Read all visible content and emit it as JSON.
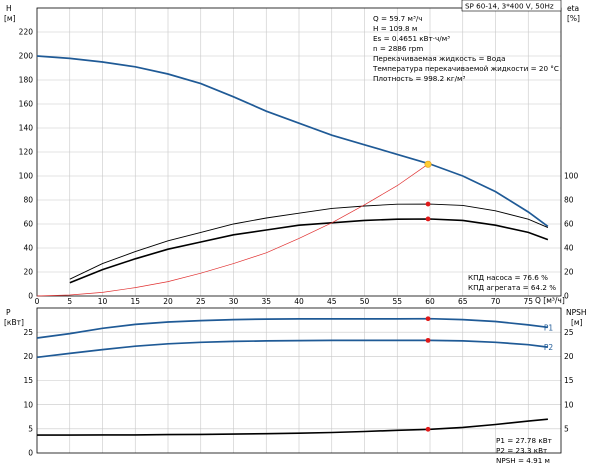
{
  "title_box": "SP 60-14, 3*400 V, 50Hz",
  "info_lines": [
    "Q = 59.7 м³/ч",
    "H = 109.8 м",
    "Es = 0.4651 кВт·ч/м³",
    "n = 2886 rpm",
    "Перекачиваемая жидкость = Вода",
    "Температура перекачиваемой жидкости = 20 °C",
    "Плотность = 998.2 кг/м³"
  ],
  "eff_lines": [
    "КПД насоса = 76.6 %",
    "КПД агрегата = 64.2 %"
  ],
  "power_lines": [
    "P1 = 27.78 кВт",
    "P2 = 23.3 кВт",
    "NPSH = 4.91 м"
  ],
  "chart_data": [
    {
      "type": "line",
      "name": "head-efficiency",
      "xlabel": "Q [м³/ч]",
      "ylabel_left": "H",
      "ylabel_left_unit": "[м]",
      "ylabel_right": "eta",
      "ylabel_right_unit": "[%]",
      "x_ticks": [
        0,
        5,
        10,
        15,
        20,
        25,
        30,
        35,
        40,
        45,
        50,
        55,
        60,
        65,
        70,
        75
      ],
      "y_ticks_left": [
        0,
        20,
        40,
        60,
        80,
        100,
        120,
        140,
        160,
        180,
        200,
        220
      ],
      "y_ticks_right": [
        0,
        20,
        40,
        60,
        80,
        100
      ],
      "xlim": [
        0,
        80
      ],
      "ylim": [
        0,
        240
      ],
      "grid": true,
      "duty_point": {
        "x": 59.7,
        "y": 109.8
      },
      "series": [
        {
          "name": "H",
          "color": "#1f5a96",
          "x": [
            0,
            5,
            10,
            15,
            20,
            25,
            30,
            35,
            40,
            45,
            50,
            55,
            60,
            65,
            70,
            75,
            78
          ],
          "y": [
            200,
            198,
            195,
            191,
            185,
            177,
            166,
            154,
            144,
            134,
            126,
            118,
            110,
            100,
            87,
            70,
            58
          ]
        },
        {
          "name": "КПД насоса",
          "color": "#000000",
          "x": [
            5,
            10,
            15,
            20,
            25,
            30,
            35,
            40,
            45,
            50,
            55,
            60,
            65,
            70,
            75,
            78
          ],
          "y": [
            14,
            27,
            37,
            46,
            53,
            60,
            65,
            69,
            73,
            75,
            76.5,
            76.6,
            75.5,
            71,
            64,
            57
          ]
        },
        {
          "name": "КПД агрегата",
          "color": "#000000",
          "x": [
            5,
            10,
            15,
            20,
            25,
            30,
            35,
            40,
            45,
            50,
            55,
            60,
            65,
            70,
            75,
            78
          ],
          "y": [
            11,
            22,
            31,
            39,
            45,
            51,
            55,
            59,
            61,
            63,
            64,
            64.2,
            63,
            59,
            53,
            47
          ]
        },
        {
          "name": "system",
          "color": "#e03030",
          "x": [
            0,
            5,
            10,
            15,
            20,
            25,
            30,
            35,
            40,
            45,
            50,
            55,
            59.7
          ],
          "y": [
            0,
            0.8,
            3,
            7,
            12,
            19,
            27,
            36,
            48,
            61,
            76,
            92,
            109.8
          ]
        }
      ],
      "markers": [
        {
          "x": 59.7,
          "y": 76.6
        },
        {
          "x": 59.7,
          "y": 64.2
        }
      ]
    },
    {
      "type": "line",
      "name": "power",
      "ylabel_left": "P",
      "ylabel_left_unit": "[кВт]",
      "ylabel_right": "NPSH",
      "ylabel_right_unit": "[м]",
      "x_ticks": [
        0,
        5,
        10,
        15,
        20,
        25,
        30,
        35,
        40,
        45,
        50,
        55,
        60,
        65,
        70,
        75
      ],
      "y_ticks_left": [
        0,
        5,
        10,
        15,
        20,
        25
      ],
      "y_ticks_right": [
        0,
        5,
        10,
        15,
        20,
        25
      ],
      "xlim": [
        0,
        80
      ],
      "ylim": [
        0,
        30
      ],
      "grid": true,
      "series": [
        {
          "name": "P1",
          "color": "#1f5a96",
          "x": [
            0,
            5,
            10,
            15,
            20,
            25,
            30,
            35,
            40,
            45,
            50,
            55,
            60,
            65,
            70,
            75,
            78
          ],
          "y": [
            23.8,
            24.7,
            25.8,
            26.6,
            27.1,
            27.4,
            27.6,
            27.7,
            27.75,
            27.75,
            27.75,
            27.75,
            27.78,
            27.6,
            27.2,
            26.5,
            26.0
          ]
        },
        {
          "name": "P2",
          "color": "#1f5a96",
          "x": [
            0,
            5,
            10,
            15,
            20,
            25,
            30,
            35,
            40,
            45,
            50,
            55,
            60,
            65,
            70,
            75,
            78
          ],
          "y": [
            19.8,
            20.6,
            21.4,
            22.1,
            22.6,
            22.9,
            23.1,
            23.2,
            23.25,
            23.3,
            23.3,
            23.3,
            23.3,
            23.2,
            22.9,
            22.4,
            21.9
          ]
        },
        {
          "name": "NPSH",
          "color": "#000000",
          "x": [
            0,
            5,
            10,
            15,
            20,
            25,
            30,
            35,
            40,
            45,
            50,
            55,
            60,
            65,
            70,
            75,
            78
          ],
          "y": [
            3.7,
            3.7,
            3.75,
            3.75,
            3.8,
            3.85,
            3.9,
            4.0,
            4.1,
            4.25,
            4.45,
            4.7,
            4.91,
            5.3,
            5.9,
            6.6,
            7.0
          ]
        }
      ],
      "markers": [
        {
          "x": 59.7,
          "y": 27.78
        },
        {
          "x": 59.7,
          "y": 23.3
        },
        {
          "x": 59.7,
          "y": 4.91
        }
      ],
      "series_labels": [
        {
          "text": "P1",
          "series": "P1"
        },
        {
          "text": "P2",
          "series": "P2"
        }
      ]
    }
  ]
}
